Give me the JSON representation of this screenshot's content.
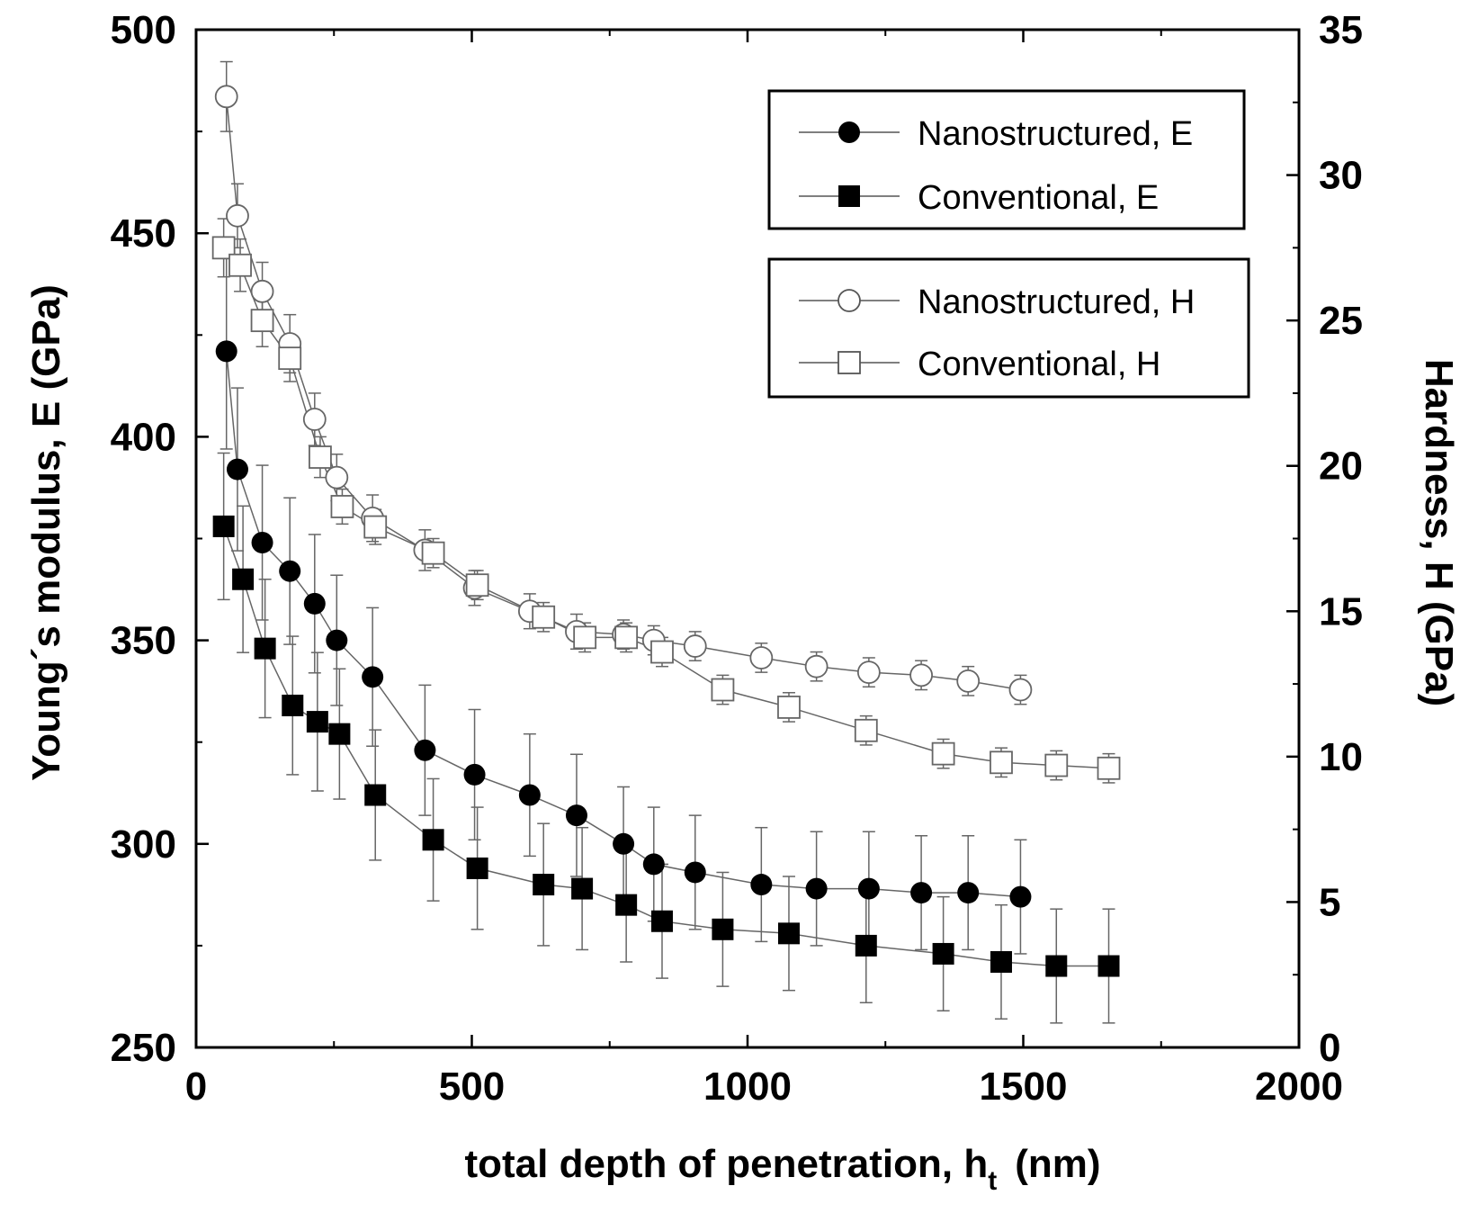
{
  "chart_data": {
    "type": "scatter",
    "x_axis": {
      "label": "total depth of penetration, h",
      "label_subscript": "t",
      "label_suffix": "(nm)",
      "range": [
        0,
        2000
      ],
      "ticks": [
        0,
        500,
        1000,
        1500,
        2000
      ]
    },
    "y_axis_left": {
      "label": "Young´s modulus, E (GPa)",
      "range": [
        250,
        500
      ],
      "ticks": [
        250,
        300,
        350,
        400,
        450,
        500
      ]
    },
    "y_axis_right": {
      "label": "Hardness, H (GPa)",
      "range": [
        0,
        35
      ],
      "ticks": [
        0,
        5,
        10,
        15,
        20,
        25,
        30,
        35
      ]
    },
    "legend_E": [
      {
        "label": "Nanostructured, E",
        "marker": "filled-circle"
      },
      {
        "label": "Conventional, E",
        "marker": "filled-square"
      }
    ],
    "legend_H": [
      {
        "label": "Nanostructured, H",
        "marker": "open-circle"
      },
      {
        "label": "Conventional, H",
        "marker": "open-square"
      }
    ],
    "series": [
      {
        "name": "Nanostructured, E",
        "axis": "left",
        "marker": "filled-circle",
        "x": [
          55,
          75,
          120,
          170,
          215,
          255,
          320,
          415,
          505,
          605,
          690,
          775,
          830,
          905,
          1025,
          1125,
          1220,
          1315,
          1400,
          1495
        ],
        "y": [
          421,
          392,
          374,
          367,
          359,
          350,
          341,
          323,
          317,
          312,
          307,
          300,
          295,
          293,
          290,
          289,
          289,
          288,
          288,
          287
        ],
        "err": [
          24,
          20,
          19,
          18,
          17,
          16,
          17,
          16,
          16,
          15,
          15,
          14,
          14,
          14,
          14,
          14,
          14,
          14,
          14,
          14
        ]
      },
      {
        "name": "Conventional, E",
        "axis": "left",
        "marker": "filled-square",
        "x": [
          50,
          85,
          125,
          175,
          220,
          260,
          325,
          430,
          510,
          630,
          700,
          780,
          845,
          955,
          1075,
          1215,
          1355,
          1460,
          1560,
          1655
        ],
        "y": [
          378,
          365,
          348,
          334,
          330,
          327,
          312,
          301,
          294,
          290,
          289,
          285,
          281,
          279,
          278,
          275,
          273,
          271,
          270,
          270
        ],
        "err": [
          18,
          18,
          17,
          17,
          17,
          16,
          16,
          15,
          15,
          15,
          15,
          14,
          14,
          14,
          14,
          14,
          14,
          14,
          14,
          14
        ]
      },
      {
        "name": "Nanostructured, H",
        "axis": "right",
        "marker": "open-circle",
        "x": [
          55,
          75,
          120,
          170,
          215,
          255,
          320,
          415,
          505,
          605,
          690,
          775,
          830,
          905,
          1025,
          1125,
          1220,
          1315,
          1400,
          1495
        ],
        "y": [
          32.7,
          28.6,
          26.0,
          24.2,
          21.6,
          19.6,
          18.2,
          17.1,
          15.8,
          15.0,
          14.3,
          14.2,
          14.0,
          13.8,
          13.4,
          13.1,
          12.9,
          12.8,
          12.6,
          12.3
        ],
        "err": [
          1.2,
          1.1,
          1.0,
          1.0,
          0.9,
          0.8,
          0.8,
          0.7,
          0.6,
          0.6,
          0.6,
          0.5,
          0.5,
          0.5,
          0.5,
          0.5,
          0.5,
          0.5,
          0.5,
          0.5
        ]
      },
      {
        "name": "Conventional, H",
        "axis": "right",
        "marker": "open-square",
        "x": [
          50,
          80,
          120,
          170,
          225,
          265,
          325,
          430,
          510,
          630,
          705,
          780,
          845,
          955,
          1075,
          1215,
          1355,
          1460,
          1560,
          1655
        ],
        "y": [
          27.5,
          26.9,
          25.0,
          23.7,
          20.3,
          18.6,
          17.9,
          17.0,
          15.9,
          14.8,
          14.1,
          14.1,
          13.6,
          12.3,
          11.7,
          10.9,
          10.1,
          9.8,
          9.7,
          9.6
        ],
        "err": [
          1.0,
          0.9,
          0.9,
          0.8,
          0.7,
          0.6,
          0.6,
          0.5,
          0.5,
          0.5,
          0.5,
          0.5,
          0.5,
          0.5,
          0.5,
          0.5,
          0.5,
          0.5,
          0.5,
          0.5
        ]
      }
    ]
  }
}
